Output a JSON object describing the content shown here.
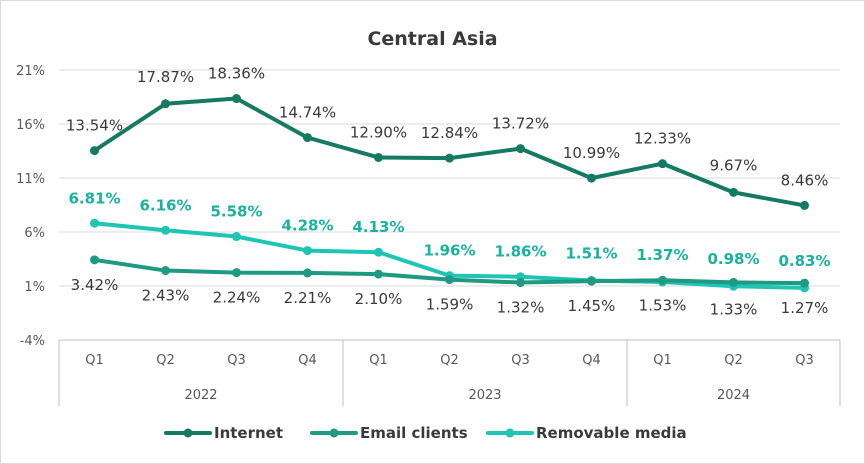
{
  "chart_data": {
    "type": "line",
    "title": "Central Asia",
    "x": [
      "Q1",
      "Q2",
      "Q3",
      "Q4",
      "Q1",
      "Q2",
      "Q3",
      "Q4",
      "Q1",
      "Q2",
      "Q3"
    ],
    "year_groups": [
      {
        "label": "2022",
        "count": 4
      },
      {
        "label": "2023",
        "count": 4
      },
      {
        "label": "2024",
        "count": 3
      }
    ],
    "ylim": [
      -4,
      21
    ],
    "yticks": [
      "21%",
      "16%",
      "11%",
      "6%",
      "1%",
      "-4%"
    ],
    "ytick_values": [
      21,
      16,
      11,
      6,
      1,
      -4
    ],
    "grid": true,
    "legend_position": "bottom",
    "series": [
      {
        "name": "Internet",
        "color": "#157a62",
        "label_color": "#3a3a3a",
        "values": [
          13.54,
          17.87,
          18.36,
          14.74,
          12.9,
          12.84,
          13.72,
          10.99,
          12.33,
          9.67,
          8.46
        ],
        "labels": [
          "13.54%",
          "17.87%",
          "18.36%",
          "14.74%",
          "12.90%",
          "12.84%",
          "13.72%",
          "10.99%",
          "12.33%",
          "9.67%",
          "8.46%"
        ]
      },
      {
        "name": "Email clients",
        "color": "#1f9a82",
        "label_color": "#3a3a3a",
        "values": [
          3.42,
          2.43,
          2.24,
          2.21,
          2.1,
          1.59,
          1.32,
          1.45,
          1.53,
          1.33,
          1.27
        ],
        "labels": [
          "3.42%",
          "2.43%",
          "2.24%",
          "2.21%",
          "2.10%",
          "1.59%",
          "1.32%",
          "1.45%",
          "1.53%",
          "1.33%",
          "1.27%"
        ]
      },
      {
        "name": "Removable media",
        "color": "#1ec4b4",
        "label_color": "#19b2a0",
        "values": [
          6.81,
          6.16,
          5.58,
          4.28,
          4.13,
          1.96,
          1.86,
          1.51,
          1.37,
          0.98,
          0.83
        ],
        "labels": [
          "6.81%",
          "6.16%",
          "5.58%",
          "4.28%",
          "4.13%",
          "1.96%",
          "1.86%",
          "1.51%",
          "1.37%",
          "0.98%",
          "0.83%"
        ]
      }
    ]
  }
}
